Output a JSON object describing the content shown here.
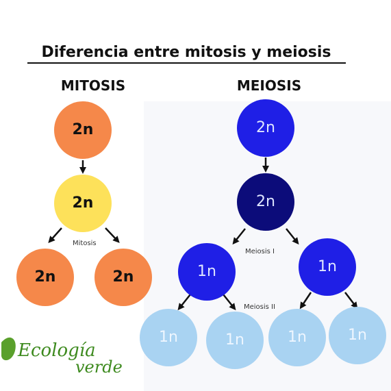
{
  "title": "Diferencia entre mitosis y meiosis",
  "mitosis": {
    "heading": "MITOSIS",
    "stage_label": "Mitosis",
    "nodes": [
      {
        "label": "2n"
      },
      {
        "label": "2n"
      },
      {
        "label": "2n"
      },
      {
        "label": "2n"
      }
    ]
  },
  "meiosis": {
    "heading": "MEIOSIS",
    "stage_labels": [
      "Meiosis I",
      "Meiosis II"
    ],
    "nodes": [
      {
        "label": "2n"
      },
      {
        "label": "2n"
      },
      {
        "label": "1n"
      },
      {
        "label": "1n"
      },
      {
        "label": "1n"
      },
      {
        "label": "1n"
      },
      {
        "label": "1n"
      },
      {
        "label": "1n"
      }
    ]
  },
  "logo": {
    "line1": "Ecología",
    "line2": "verde"
  }
}
